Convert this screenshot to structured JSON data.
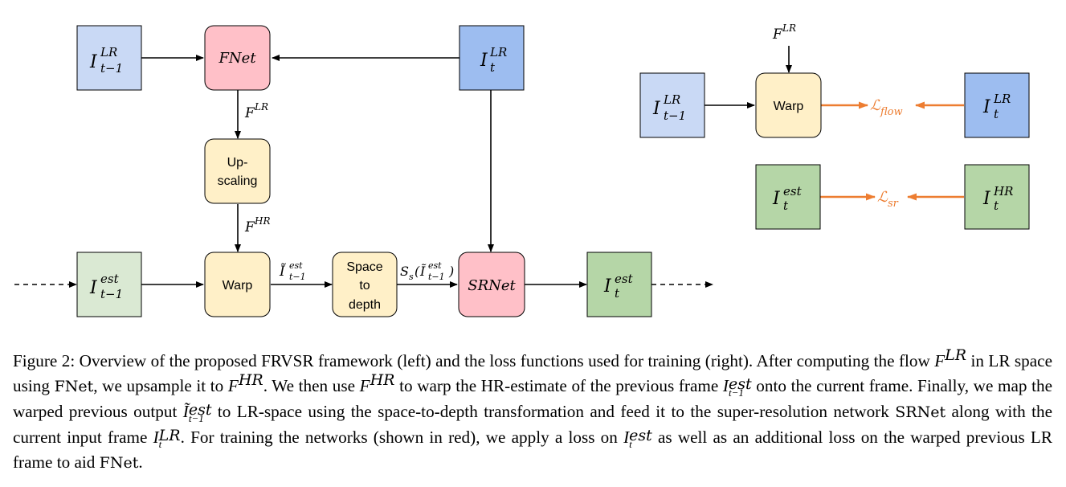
{
  "diagram": {
    "left": {
      "prev_lr": {
        "base": "I",
        "sup": "LR",
        "sub": "t−1"
      },
      "fnet": "FNet",
      "curr_lr": {
        "base": "I",
        "sup": "LR",
        "sub": "t"
      },
      "f_lr_label": {
        "base": "F",
        "sup": "LR"
      },
      "upscaling": [
        "Up-",
        "scaling"
      ],
      "f_hr_label": {
        "base": "F",
        "sup": "HR"
      },
      "prev_est": {
        "base": "I",
        "sup": "est",
        "sub": "t−1"
      },
      "warp": "Warp",
      "warped_label": {
        "base": "Ĩ",
        "sup": "est",
        "sub": "t−1"
      },
      "space_to_depth": [
        "Space",
        "to",
        "depth"
      ],
      "s2d_label": {
        "pre": "S",
        "sub1": "s",
        "open": "(",
        "base": "Ĩ",
        "sup": "est",
        "sub": "t−1",
        "close": ")"
      },
      "srnet": "SRNet",
      "curr_est": {
        "base": "I",
        "sup": "est",
        "sub": "t"
      }
    },
    "right": {
      "f_lr_label": {
        "base": "F",
        "sup": "LR"
      },
      "prev_lr": {
        "base": "I",
        "sup": "LR",
        "sub": "t−1"
      },
      "warp": "Warp",
      "loss_flow": {
        "base": "ℒ",
        "sub": "flow"
      },
      "curr_lr": {
        "base": "I",
        "sup": "LR",
        "sub": "t"
      },
      "est": {
        "base": "I",
        "sup": "est",
        "sub": "t"
      },
      "loss_sr": {
        "base": "ℒ",
        "sub": "sr"
      },
      "hr": {
        "base": "I",
        "sup": "HR",
        "sub": "t"
      }
    },
    "colors": {
      "light_blue": "#c9d9f5",
      "mid_blue": "#9dbdf0",
      "pink": "#ffc0c8",
      "yellow": "#fff0c8",
      "light_green": "#dae9d3",
      "mid_green": "#b5d6a7",
      "orange": "#ed7d31"
    }
  },
  "caption": {
    "p01": "Figure 2: Overview of the proposed FRVSR framework (left) and the loss functions used for training (right). After computing the flow ",
    "p02_base": "F",
    "p02_sup": "LR",
    "p03": " in LR space using ",
    "p04": "FNet",
    "p05": ", we upsample it to ",
    "p06_base": "F",
    "p06_sup": "HR",
    "p07": ". We then use ",
    "p08_base": "F",
    "p08_sup": "HR",
    "p09": " to warp the HR-estimate of the previous frame ",
    "p10_base": "I",
    "p10_sup": "est",
    "p10_sub": "t−1",
    "p11": " onto the current frame. Finally, we map the warped previous output ",
    "p12_base": "Ĩ",
    "p12_sup": "est",
    "p12_sub": "t−1",
    "p13": " to LR-space using the space-to-depth transformation and feed it to the super-resolution network ",
    "p14": "SRNet",
    "p15": " along with the current input frame ",
    "p16_base": "I",
    "p16_sup": "LR",
    "p16_sub": "t",
    "p17": ". For training the networks (shown in red), we apply a loss on ",
    "p18_base": "I",
    "p18_sup": "est",
    "p18_sub": "t",
    "p19": " as well as an additional loss on the warped previous LR frame to aid ",
    "p20": "FNet",
    "p21": "."
  }
}
